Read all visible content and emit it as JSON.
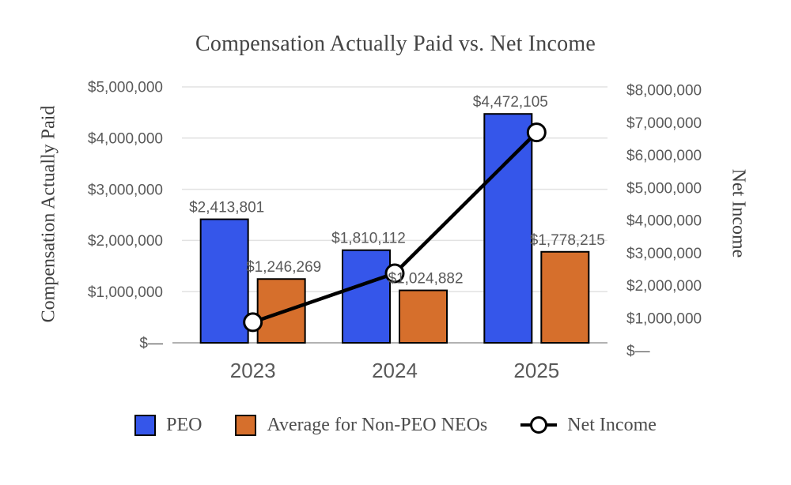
{
  "title": "Compensation Actually Paid vs. Net Income",
  "colors": {
    "peo_bar": "#3556EA",
    "non_peo_bar": "#D66F2C",
    "bar_border": "#000000",
    "net_income_line": "#000000",
    "marker_fill": "#FFFFFF",
    "gridline": "#E2E2E2",
    "baseline": "#999999",
    "tick_text": "#595959",
    "title_text": "#444444"
  },
  "legend": {
    "peo": "PEO",
    "non_peo": "Average for Non-PEO NEOs",
    "net_income": "Net Income"
  },
  "chart_data": {
    "type": "bar",
    "subtype": "grouped-bars-with-line-on-secondary-axis",
    "title": "Compensation Actually Paid vs. Net Income",
    "categories": [
      "2023",
      "2024",
      "2025"
    ],
    "series": [
      {
        "name": "PEO",
        "kind": "bar",
        "axis": "left",
        "values": [
          2413801,
          1810112,
          4472105
        ],
        "labels": [
          "$2,413,801",
          "$1,810,112",
          "$4,472,105"
        ],
        "color": "#3556EA"
      },
      {
        "name": "Average for Non-PEO NEOs",
        "kind": "bar",
        "axis": "left",
        "values": [
          1246269,
          1024882,
          1778215
        ],
        "labels": [
          "$1,246,269",
          "$1,024,882",
          "$1,778,215"
        ],
        "color": "#D66F2C"
      },
      {
        "name": "Net Income",
        "kind": "line",
        "axis": "right",
        "values": [
          875000,
          2375000,
          6700000
        ],
        "values_are_estimates_from_pixels": true,
        "color": "#000000"
      }
    ],
    "left_axis": {
      "label": "Compensation Actually Paid",
      "min": 0,
      "max": 5000000,
      "tick_step": 1000000,
      "ticks": [
        "$5,000,000",
        "$4,000,000",
        "$3,000,000",
        "$2,000,000",
        "$1,000,000",
        "$—"
      ]
    },
    "right_axis": {
      "label": "Net Income",
      "min": 0,
      "max": 8000000,
      "tick_step": 1000000,
      "ticks": [
        "$8,000,000",
        "$7,000,000",
        "$6,000,000",
        "$5,000,000",
        "$4,000,000",
        "$3,000,000",
        "$2,000,000",
        "$1,000,000",
        "$—"
      ]
    },
    "grid": true,
    "legend_position": "bottom"
  }
}
